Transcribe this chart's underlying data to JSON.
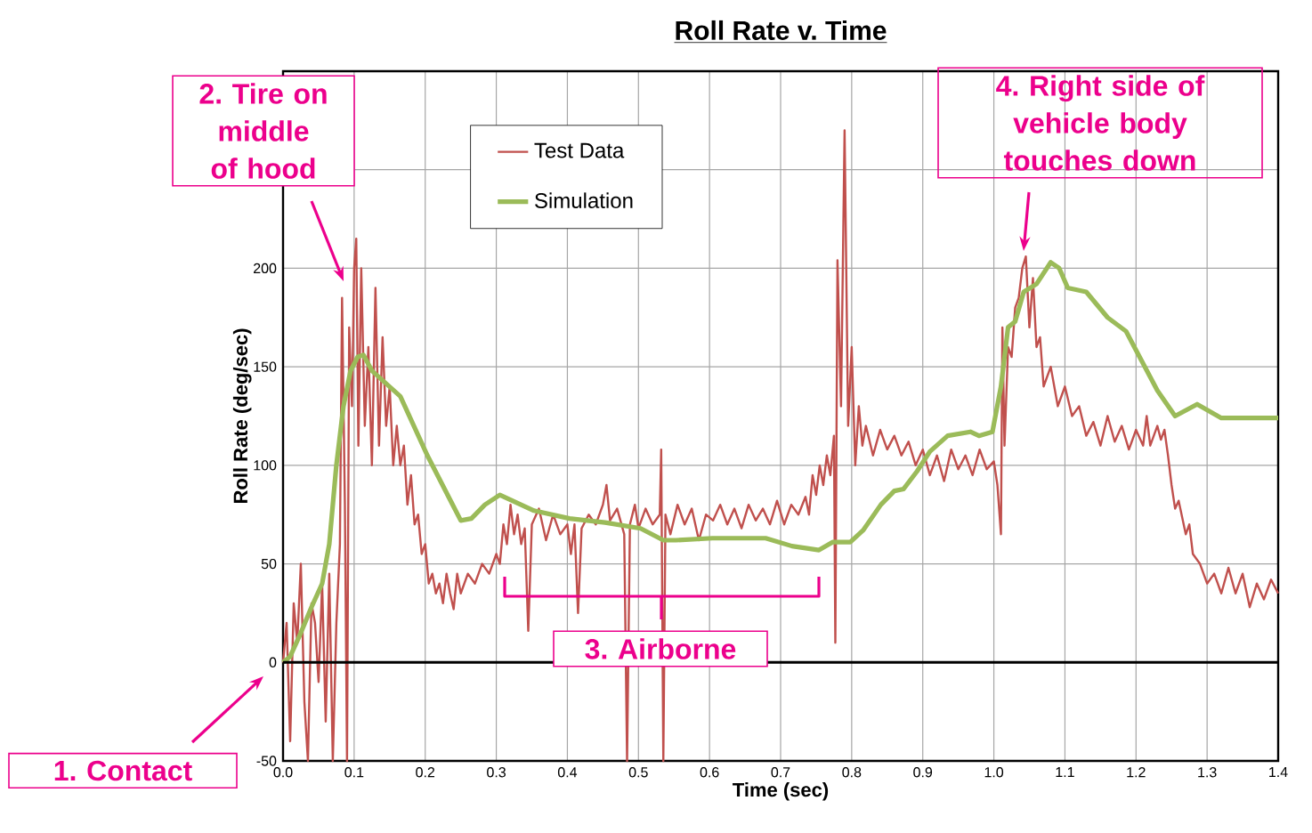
{
  "chart_data": {
    "type": "line",
    "title": "Roll Rate v. Time",
    "xlabel": "Time (sec)",
    "ylabel": "Roll Rate (deg/sec)",
    "xlim": [
      0,
      1.4
    ],
    "ylim": [
      -50,
      300
    ],
    "xticks": [
      {
        "value": 0,
        "label": "0.0"
      },
      0.1,
      0.2,
      0.3,
      0.4,
      0.5,
      0.6,
      0.7,
      0.8,
      0.9,
      {
        "value": 1,
        "label": "1.0"
      },
      1.1,
      1.2,
      1.3,
      1.4
    ],
    "yticks": [
      -50,
      0,
      50,
      100,
      150,
      200,
      {
        "value": 250,
        "label": null
      },
      {
        "value": 300,
        "label": null
      }
    ],
    "grid": true,
    "legend": "top left",
    "marker": "none",
    "line_style": "solid",
    "series": [
      {
        "name": "Test Data",
        "color": "#c0504d",
        "x": [
          0,
          0.005,
          0.01,
          0.015,
          0.02,
          0.025,
          0.03,
          0.035,
          0.04,
          0.045,
          0.05,
          0.055,
          0.06,
          0.065,
          0.07,
          0.075,
          0.08,
          0.083,
          0.087,
          0.09,
          0.093,
          0.097,
          0.1,
          0.103,
          0.106,
          0.11,
          0.115,
          0.12,
          0.125,
          0.13,
          0.135,
          0.14,
          0.145,
          0.15,
          0.155,
          0.16,
          0.165,
          0.17,
          0.175,
          0.18,
          0.185,
          0.19,
          0.195,
          0.2,
          0.205,
          0.21,
          0.215,
          0.22,
          0.225,
          0.23,
          0.235,
          0.24,
          0.245,
          0.25,
          0.26,
          0.27,
          0.28,
          0.29,
          0.3,
          0.305,
          0.31,
          0.315,
          0.32,
          0.325,
          0.33,
          0.335,
          0.34,
          0.345,
          0.35,
          0.36,
          0.37,
          0.38,
          0.39,
          0.4,
          0.405,
          0.41,
          0.415,
          0.42,
          0.43,
          0.44,
          0.45,
          0.455,
          0.46,
          0.47,
          0.48,
          0.484,
          0.488,
          0.495,
          0.5,
          0.51,
          0.52,
          0.53,
          0.532,
          0.535,
          0.538,
          0.545,
          0.555,
          0.565,
          0.575,
          0.585,
          0.595,
          0.605,
          0.615,
          0.625,
          0.635,
          0.645,
          0.655,
          0.665,
          0.675,
          0.685,
          0.695,
          0.705,
          0.715,
          0.725,
          0.735,
          0.74,
          0.745,
          0.75,
          0.755,
          0.76,
          0.765,
          0.77,
          0.775,
          0.777,
          0.78,
          0.785,
          0.79,
          0.795,
          0.8,
          0.805,
          0.81,
          0.815,
          0.82,
          0.83,
          0.84,
          0.85,
          0.86,
          0.87,
          0.88,
          0.89,
          0.9,
          0.91,
          0.92,
          0.93,
          0.94,
          0.95,
          0.96,
          0.97,
          0.98,
          0.99,
          1.0,
          1.005,
          1.01,
          1.012,
          1.015,
          1.02,
          1.025,
          1.03,
          1.035,
          1.04,
          1.045,
          1.05,
          1.055,
          1.06,
          1.065,
          1.07,
          1.08,
          1.09,
          1.1,
          1.11,
          1.12,
          1.13,
          1.14,
          1.15,
          1.16,
          1.17,
          1.18,
          1.19,
          1.2,
          1.21,
          1.215,
          1.22,
          1.23,
          1.235,
          1.24,
          1.245,
          1.25,
          1.255,
          1.26,
          1.27,
          1.275,
          1.28,
          1.29,
          1.3,
          1.31,
          1.32,
          1.33,
          1.34,
          1.35,
          1.36,
          1.37,
          1.38,
          1.39,
          1.4
        ],
        "values": [
          0,
          20,
          -40,
          30,
          10,
          50,
          -20,
          -50,
          30,
          20,
          -10,
          40,
          -30,
          45,
          -50,
          20,
          60,
          185,
          80,
          -50,
          170,
          130,
          200,
          215,
          110,
          200,
          120,
          160,
          100,
          190,
          110,
          165,
          120,
          140,
          100,
          120,
          100,
          110,
          80,
          95,
          70,
          75,
          55,
          60,
          40,
          45,
          35,
          40,
          30,
          45,
          35,
          27,
          45,
          35,
          45,
          40,
          50,
          45,
          55,
          50,
          70,
          60,
          80,
          65,
          75,
          60,
          68,
          16,
          70,
          78,
          62,
          75,
          65,
          70,
          55,
          70,
          25,
          68,
          75,
          70,
          80,
          90,
          72,
          78,
          65,
          -50,
          70,
          80,
          68,
          78,
          70,
          75,
          108,
          -50,
          75,
          65,
          80,
          70,
          78,
          62,
          75,
          72,
          80,
          70,
          78,
          68,
          80,
          72,
          78,
          70,
          82,
          70,
          80,
          75,
          84,
          75,
          95,
          85,
          100,
          90,
          105,
          95,
          115,
          10,
          204,
          130,
          270,
          120,
          160,
          100,
          130,
          110,
          120,
          105,
          118,
          108,
          115,
          105,
          112,
          100,
          108,
          95,
          105,
          92,
          108,
          98,
          105,
          95,
          108,
          98,
          102,
          90,
          65,
          170,
          110,
          160,
          155,
          180,
          185,
          200,
          206,
          170,
          195,
          160,
          165,
          140,
          150,
          130,
          140,
          125,
          130,
          115,
          122,
          110,
          125,
          112,
          120,
          108,
          118,
          110,
          125,
          110,
          120,
          113,
          118,
          105,
          90,
          78,
          82,
          65,
          70,
          55,
          50,
          40,
          45,
          35,
          48,
          35,
          45,
          28,
          40,
          32,
          42,
          35
        ]
      },
      {
        "name": "Simulation",
        "color": "#9bbb59",
        "x": [
          0,
          0.01,
          0.025,
          0.04,
          0.055,
          0.065,
          0.075,
          0.085,
          0.095,
          0.105,
          0.113,
          0.125,
          0.165,
          0.203,
          0.25,
          0.265,
          0.284,
          0.305,
          0.353,
          0.403,
          0.453,
          0.503,
          0.535,
          0.553,
          0.604,
          0.679,
          0.716,
          0.754,
          0.773,
          0.798,
          0.816,
          0.841,
          0.86,
          0.873,
          0.892,
          0.91,
          0.935,
          0.967,
          0.979,
          0.998,
          1.01,
          1.02,
          1.03,
          1.042,
          1.06,
          1.08,
          1.092,
          1.104,
          1.13,
          1.16,
          1.186,
          1.205,
          1.23,
          1.255,
          1.286,
          1.32,
          1.4
        ],
        "values": [
          0,
          3,
          15,
          28,
          40,
          60,
          100,
          130,
          148,
          155,
          156,
          148,
          135,
          105,
          72,
          73,
          80,
          85,
          77,
          73,
          71,
          68,
          62,
          62,
          63,
          63,
          59,
          57,
          61,
          61,
          67,
          80,
          87,
          88,
          97,
          107,
          115,
          117,
          115,
          117,
          140,
          170,
          173,
          188,
          192,
          203,
          200,
          190,
          188,
          175,
          168,
          155,
          138,
          125,
          131,
          124,
          124
        ]
      }
    ],
    "ref_lines": [
      {
        "axis": "y",
        "value": 0,
        "color": "#000000"
      }
    ],
    "annotations": [
      "1. Contact",
      "2. Tire on middle of hood",
      "3. Airborne",
      "4. Right side of vehicle body touches down"
    ]
  }
}
